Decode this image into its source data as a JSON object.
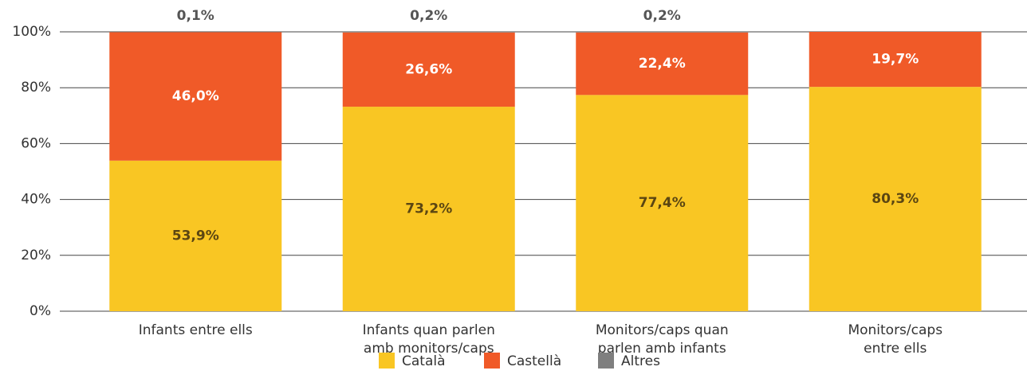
{
  "chart_data": {
    "type": "stacked_bar",
    "categories": [
      [
        "Infants entre ells"
      ],
      [
        "Infants quan parlen",
        "amb monitors/caps"
      ],
      [
        "Monitors/caps quan",
        "parlen amb infants"
      ],
      [
        "Monitors/caps",
        "entre ells"
      ]
    ],
    "series": [
      {
        "name": "Català",
        "color": "#f9c623",
        "values": [
          53.9,
          73.2,
          77.4,
          80.3
        ],
        "value_labels": [
          "53,9%",
          "73,2%",
          "77,4%",
          "80,3%"
        ],
        "label_color": "#5b4612"
      },
      {
        "name": "Castellà",
        "color": "#f05a28",
        "values": [
          46.0,
          26.6,
          22.4,
          19.7
        ],
        "value_labels": [
          "46,0%",
          "26,6%",
          "22,4%",
          "19,7%"
        ],
        "label_color": "#ffffff"
      },
      {
        "name": "Altres",
        "color": "#7f7f7f",
        "values": [
          0.1,
          0.2,
          0.2,
          null
        ],
        "value_labels": [
          "0,1%",
          "0,2%",
          "0,2%",
          null
        ],
        "label_color": "#555555"
      }
    ],
    "ylim": [
      0,
      100
    ],
    "yticks": [
      {
        "value": 0,
        "label": "0%"
      },
      {
        "value": 20,
        "label": "20%"
      },
      {
        "value": 40,
        "label": "40%"
      },
      {
        "value": 60,
        "label": "60%"
      },
      {
        "value": 80,
        "label": "80%"
      },
      {
        "value": 100,
        "label": "100%"
      }
    ],
    "grid": true,
    "legend": "bottom"
  }
}
